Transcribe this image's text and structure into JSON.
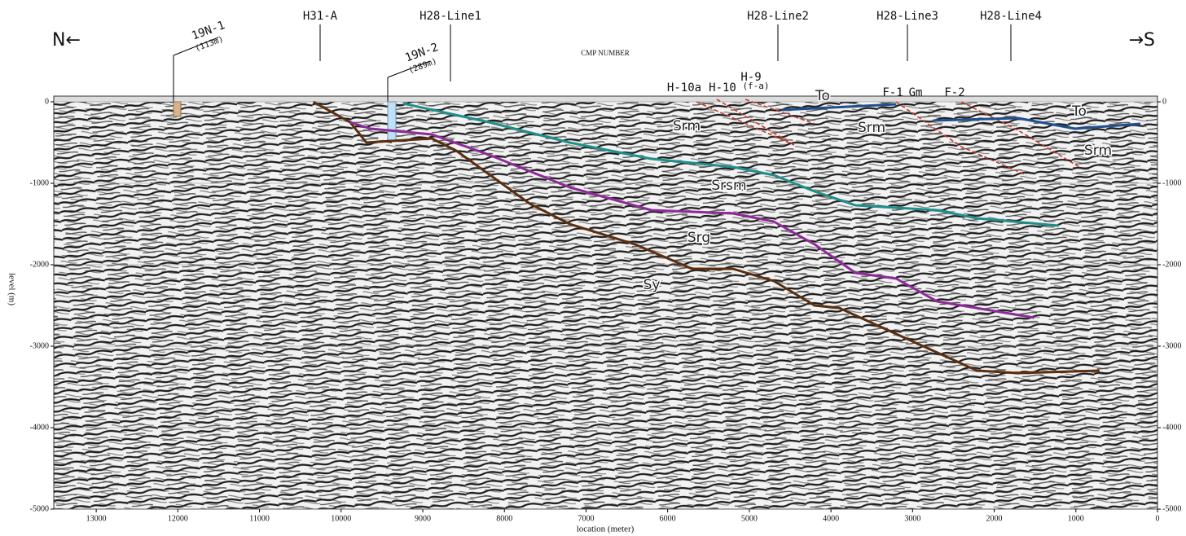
{
  "chart_data": {
    "type": "line",
    "x_label": "location (meter)",
    "y_label": "level (m)",
    "axis_caption": "CMP NUMBER",
    "direction_left": "N←",
    "direction_right": "→S",
    "xlim": [
      13520,
      0
    ],
    "ylim": [
      -5000,
      0
    ],
    "xticks": [
      13000,
      12000,
      11000,
      10000,
      9000,
      8000,
      7000,
      6000,
      5000,
      4000,
      3000,
      2000,
      1000,
      0
    ],
    "yticks": [
      0,
      -1000,
      -2000,
      -3000,
      -4000,
      -5000
    ],
    "grid": true,
    "series": [
      {
        "name": "Sy",
        "color": "#5a2e0e",
        "x": [
          10340,
          9890,
          9690,
          8890,
          8590,
          7690,
          7200,
          6400,
          5700,
          5200,
          4700,
          4200,
          3900,
          3200,
          2210,
          1710,
          710
        ],
        "values": [
          0,
          -250,
          -500,
          -450,
          -600,
          -1250,
          -1500,
          -1750,
          -2050,
          -2050,
          -2200,
          -2500,
          -2530,
          -2850,
          -3300,
          -3330,
          -3300
        ]
      },
      {
        "name": "Srg",
        "color": "#8e2a9a",
        "x": [
          9890,
          9640,
          8890,
          8190,
          7200,
          6200,
          5200,
          4700,
          4200,
          3700,
          3200,
          2700,
          1510
        ],
        "values": [
          -250,
          -330,
          -400,
          -650,
          -1050,
          -1330,
          -1370,
          -1470,
          -1750,
          -2100,
          -2170,
          -2450,
          -2650
        ]
      },
      {
        "name": "Srsm",
        "color": "#1f8f8a",
        "x": [
          9240,
          8190,
          7200,
          6200,
          5200,
          4700,
          4200,
          3700,
          2700,
          2210,
          1210
        ],
        "values": [
          -20,
          -250,
          -500,
          -700,
          -800,
          -900,
          -1100,
          -1270,
          -1330,
          -1430,
          -1520
        ]
      },
      {
        "name": "To",
        "color": "#1f4f8f",
        "x": [
          4600,
          3200,
          3000,
          2750,
          1710,
          1010,
          210
        ],
        "values": [
          -100,
          -30,
          null,
          -230,
          -200,
          -330,
          -270
        ]
      }
    ],
    "annotations": {
      "wells": [
        "19N-1",
        "(113m)",
        "19N-2",
        "(289m)"
      ],
      "lines": [
        "H31-A",
        "H28-Line1",
        "H28-Line2",
        "H28-Line3",
        "H28-Line4"
      ],
      "faults": [
        "H-9",
        "(f-a)",
        "H-10a",
        "H-10",
        "F-1",
        "Gm",
        "F-2"
      ],
      "units": [
        "Srm",
        "Srm",
        "Srm"
      ]
    }
  }
}
